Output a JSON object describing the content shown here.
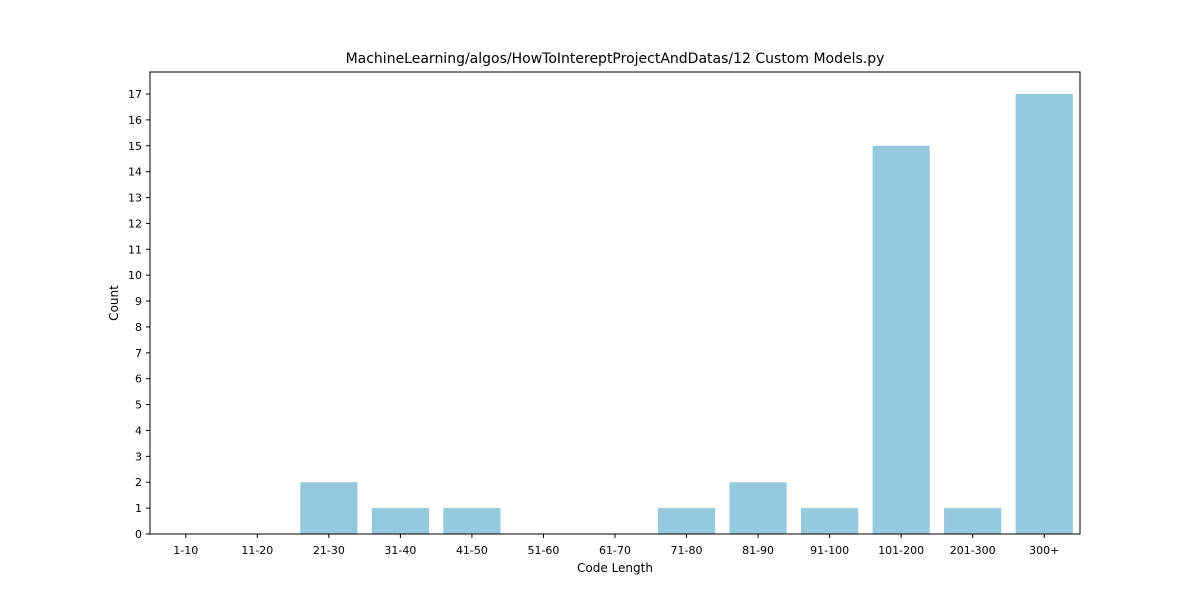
{
  "chart_data": {
    "type": "bar",
    "title": "MachineLearning/algos/HowToIntereptProjectAndDatas/12 Custom Models.py",
    "xlabel": "Code Length",
    "ylabel": "Count",
    "categories": [
      "1-10",
      "11-20",
      "21-30",
      "31-40",
      "41-50",
      "51-60",
      "61-70",
      "71-80",
      "81-90",
      "91-100",
      "101-200",
      "201-300",
      "300+"
    ],
    "values": [
      0,
      0,
      2,
      1,
      1,
      0,
      0,
      1,
      2,
      1,
      15,
      1,
      17
    ],
    "ylim": [
      0,
      17.85
    ],
    "yticks": [
      0,
      1,
      2,
      3,
      4,
      5,
      6,
      7,
      8,
      9,
      10,
      11,
      12,
      13,
      14,
      15,
      16,
      17
    ],
    "grid": false,
    "bar_color": "#95c9de"
  }
}
